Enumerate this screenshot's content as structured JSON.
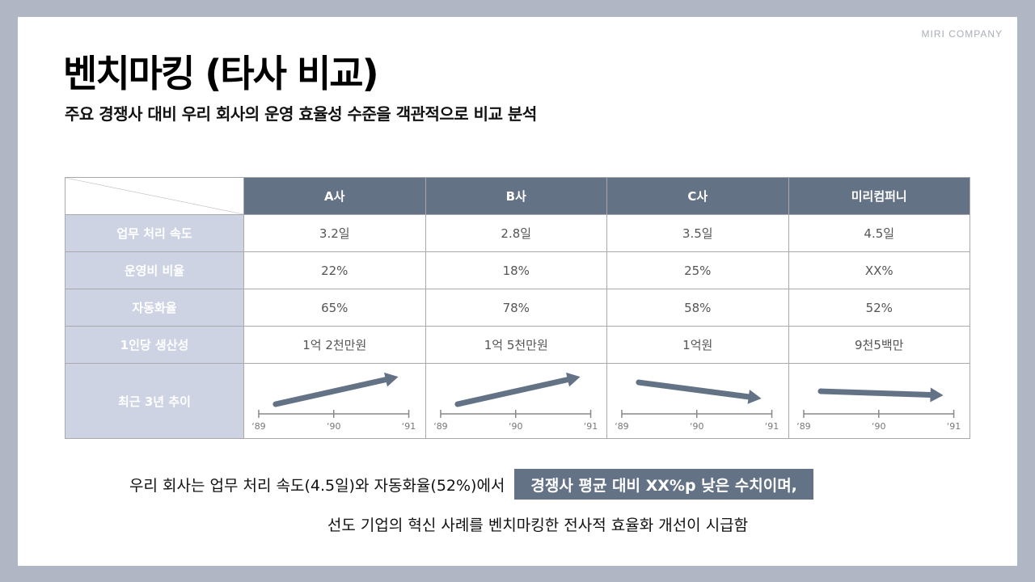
{
  "brand": "MIRI COMPANY",
  "title": "벤치마킹 (타사 비교)",
  "subtitle": "주요 경쟁사 대비 우리 회사의 운영 효율성 수준을 객관적으로 비교 분석",
  "table": {
    "columns": [
      "A사",
      "B사",
      "C사",
      "미리컴퍼니"
    ],
    "rows": [
      {
        "label": "업무 처리 속도",
        "values": [
          "3.2일",
          "2.8일",
          "3.5일",
          "4.5일"
        ]
      },
      {
        "label": "운영비 비율",
        "values": [
          "22%",
          "18%",
          "25%",
          "XX%"
        ]
      },
      {
        "label": "자동화율",
        "values": [
          "65%",
          "78%",
          "58%",
          "52%"
        ]
      },
      {
        "label": "1인당 생산성",
        "values": [
          "1억 2천만원",
          "1억 5천만원",
          "1억원",
          "9천5백만"
        ]
      }
    ],
    "trend_row": {
      "label": "최근 3년 추이",
      "axis_ticks": [
        "‘89",
        "‘90",
        "‘91"
      ],
      "trends": [
        "up",
        "up",
        "down",
        "slight-down"
      ],
      "arrow_color": "#647286"
    }
  },
  "footer": {
    "line1_text": "우리 회사는 업무 처리 속도(4.5일)와 자동화율(52%)에서",
    "line1_highlight": "경쟁사 평균 대비 XX%p 낮은 수치이며,",
    "line2": "선도 기업의 혁신 사례를 벤치마킹한 전사적 효율화 개선이 시급함"
  },
  "colors": {
    "header_bg": "#647286",
    "row_header_bg": "#cdd3e3",
    "background": "#b0b6c3"
  }
}
